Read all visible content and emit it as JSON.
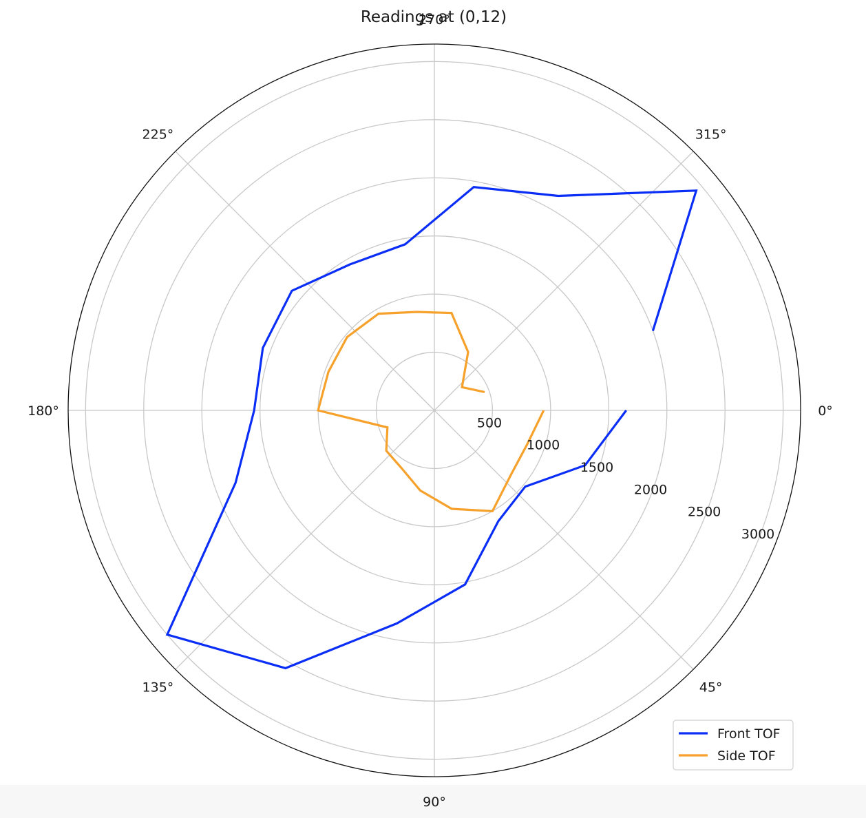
{
  "chart_data": {
    "type": "line",
    "subtype": "polar",
    "title": "Readings at (0,12)",
    "theta_direction": "clockwise",
    "theta_zero": "east",
    "theta_ticks": [
      "0°",
      "45°",
      "90°",
      "135°",
      "180°",
      "225°",
      "270°",
      "315°"
    ],
    "radial_ticks": [
      "500",
      "1000",
      "1500",
      "2000",
      "2500",
      "3000"
    ],
    "radial_tick_values": [
      500,
      1000,
      1500,
      2000,
      2500,
      3000
    ],
    "rlim": [
      0,
      3150
    ],
    "grid": true,
    "legend_position": "lower-right",
    "series": [
      {
        "name": "Front TOF",
        "color": "#0a2ef5",
        "theta_deg": [
          0,
          20,
          40,
          60,
          80,
          100,
          120,
          140,
          160,
          180,
          200,
          220,
          240,
          260,
          280,
          300,
          320,
          340
        ],
        "r": [
          1650,
          1380,
          1020,
          1100,
          1520,
          1860,
          2560,
          3000,
          1820,
          1550,
          1570,
          1600,
          1450,
          1450,
          1950,
          2130,
          2940,
          2000
        ]
      },
      {
        "name": "Side TOF",
        "color": "#f5a12b",
        "theta_deg": [
          0,
          20,
          40,
          60,
          80,
          100,
          120,
          140,
          160,
          180,
          200,
          220,
          240,
          260,
          280,
          300,
          320,
          340
        ],
        "r": [
          940,
          850,
          860,
          1000,
          860,
          700,
          570,
          540,
          430,
          1000,
          970,
          980,
          960,
          860,
          850,
          580,
          310,
          460
        ]
      }
    ]
  }
}
